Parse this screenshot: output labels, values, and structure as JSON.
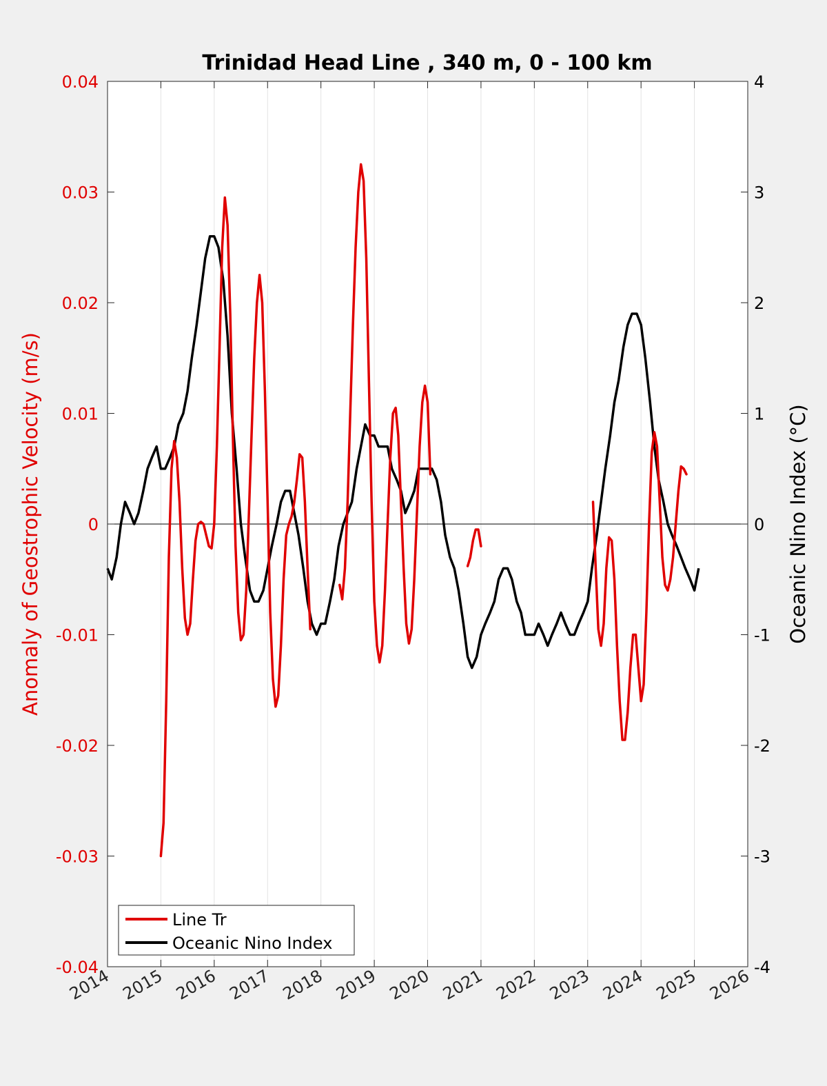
{
  "chart_data": {
    "type": "line",
    "title": "Trinidad Head Line , 340 m, 0 - 100 km",
    "xlabel": "",
    "ylabel_left": "Anomaly of Geostrophic Velocity (m/s)",
    "ylabel_right": "Oceanic Nino Index (°C)",
    "xlim": [
      2014,
      2026
    ],
    "ylim_left": [
      -0.04,
      0.04
    ],
    "ylim_right": [
      -4,
      4
    ],
    "x_ticks": [
      "2014",
      "2015",
      "2016",
      "2017",
      "2018",
      "2019",
      "2020",
      "2021",
      "2022",
      "2023",
      "2024",
      "2025",
      "2026"
    ],
    "y_ticks_left": [
      "-0.04",
      "-0.03",
      "-0.02",
      "-0.01",
      "0",
      "0.01",
      "0.02",
      "0.03",
      "0.04"
    ],
    "y_ticks_right": [
      "-4",
      "-3",
      "-2",
      "-1",
      "0",
      "1",
      "2",
      "3",
      "4"
    ],
    "grid": "vertical",
    "zero_line": true,
    "legend_position": "bottom-left",
    "colors": {
      "line_tr": "#e00000",
      "oni": "#000000"
    },
    "series": [
      {
        "name": "Line Tr",
        "axis": "left",
        "segments": [
          [
            [
              2015.0,
              -0.03
            ],
            [
              2015.05,
              -0.027
            ],
            [
              2015.1,
              -0.016
            ],
            [
              2015.15,
              -0.003
            ],
            [
              2015.2,
              0.005
            ],
            [
              2015.25,
              0.0075
            ],
            [
              2015.3,
              0.006
            ],
            [
              2015.35,
              0.002
            ],
            [
              2015.4,
              -0.004
            ],
            [
              2015.45,
              -0.0085
            ],
            [
              2015.5,
              -0.01
            ],
            [
              2015.55,
              -0.009
            ],
            [
              2015.6,
              -0.005
            ],
            [
              2015.65,
              -0.0015
            ],
            [
              2015.7,
              0.0
            ],
            [
              2015.75,
              0.0002
            ],
            [
              2015.8,
              0.0
            ],
            [
              2015.85,
              -0.001
            ],
            [
              2015.9,
              -0.002
            ],
            [
              2015.95,
              -0.0022
            ],
            [
              2016.0,
              0.0
            ],
            [
              2016.05,
              0.007
            ],
            [
              2016.1,
              0.016
            ],
            [
              2016.15,
              0.025
            ],
            [
              2016.2,
              0.0295
            ],
            [
              2016.25,
              0.027
            ],
            [
              2016.3,
              0.019
            ],
            [
              2016.35,
              0.008
            ],
            [
              2016.4,
              -0.002
            ],
            [
              2016.45,
              -0.008
            ],
            [
              2016.5,
              -0.0105
            ],
            [
              2016.55,
              -0.01
            ],
            [
              2016.6,
              -0.006
            ],
            [
              2016.65,
              0.001
            ],
            [
              2016.7,
              0.008
            ],
            [
              2016.75,
              0.015
            ],
            [
              2016.8,
              0.02
            ],
            [
              2016.85,
              0.0225
            ],
            [
              2016.9,
              0.02
            ],
            [
              2016.95,
              0.012
            ],
            [
              2017.0,
              0.002
            ],
            [
              2017.05,
              -0.008
            ],
            [
              2017.1,
              -0.014
            ],
            [
              2017.15,
              -0.0165
            ],
            [
              2017.2,
              -0.0155
            ],
            [
              2017.25,
              -0.011
            ],
            [
              2017.3,
              -0.005
            ],
            [
              2017.35,
              -0.001
            ],
            [
              2017.4,
              0.0
            ],
            [
              2017.45,
              0.0007
            ],
            [
              2017.5,
              0.002
            ],
            [
              2017.55,
              0.004
            ],
            [
              2017.6,
              0.0063
            ],
            [
              2017.65,
              0.006
            ],
            [
              2017.7,
              0.002
            ],
            [
              2017.75,
              -0.004
            ],
            [
              2017.8,
              -0.0095
            ]
          ],
          [
            [
              2018.35,
              -0.0055
            ],
            [
              2018.4,
              -0.0068
            ],
            [
              2018.45,
              -0.004
            ],
            [
              2018.5,
              0.002
            ],
            [
              2018.55,
              0.01
            ],
            [
              2018.6,
              0.018
            ],
            [
              2018.65,
              0.025
            ],
            [
              2018.7,
              0.03
            ],
            [
              2018.75,
              0.0325
            ],
            [
              2018.8,
              0.031
            ],
            [
              2018.85,
              0.024
            ],
            [
              2018.9,
              0.013
            ],
            [
              2018.95,
              0.002
            ],
            [
              2019.0,
              -0.007
            ],
            [
              2019.05,
              -0.011
            ],
            [
              2019.1,
              -0.0125
            ],
            [
              2019.15,
              -0.011
            ],
            [
              2019.2,
              -0.006
            ],
            [
              2019.25,
              0.0
            ],
            [
              2019.3,
              0.006
            ],
            [
              2019.35,
              0.01
            ],
            [
              2019.4,
              0.0105
            ],
            [
              2019.45,
              0.008
            ],
            [
              2019.5,
              0.002
            ],
            [
              2019.55,
              -0.004
            ],
            [
              2019.6,
              -0.009
            ],
            [
              2019.65,
              -0.0108
            ],
            [
              2019.7,
              -0.0095
            ],
            [
              2019.75,
              -0.005
            ],
            [
              2019.8,
              0.001
            ],
            [
              2019.85,
              0.007
            ],
            [
              2019.9,
              0.011
            ],
            [
              2019.95,
              0.0125
            ],
            [
              2020.0,
              0.011
            ],
            [
              2020.05,
              0.0045
            ]
          ],
          [
            [
              2020.75,
              -0.0038
            ],
            [
              2020.8,
              -0.003
            ],
            [
              2020.85,
              -0.0015
            ],
            [
              2020.9,
              -0.0005
            ],
            [
              2020.95,
              -0.0005
            ],
            [
              2021.0,
              -0.002
            ]
          ],
          [
            [
              2023.1,
              0.002
            ],
            [
              2023.15,
              -0.004
            ],
            [
              2023.2,
              -0.0095
            ],
            [
              2023.25,
              -0.011
            ],
            [
              2023.3,
              -0.009
            ],
            [
              2023.35,
              -0.004
            ],
            [
              2023.4,
              -0.0012
            ],
            [
              2023.45,
              -0.0015
            ],
            [
              2023.5,
              -0.005
            ],
            [
              2023.55,
              -0.011
            ],
            [
              2023.6,
              -0.016
            ],
            [
              2023.65,
              -0.0195
            ],
            [
              2023.7,
              -0.0195
            ],
            [
              2023.75,
              -0.017
            ],
            [
              2023.8,
              -0.013
            ],
            [
              2023.85,
              -0.01
            ],
            [
              2023.9,
              -0.01
            ],
            [
              2023.95,
              -0.013
            ],
            [
              2024.0,
              -0.016
            ],
            [
              2024.05,
              -0.0145
            ],
            [
              2024.1,
              -0.008
            ],
            [
              2024.15,
              0.0
            ],
            [
              2024.2,
              0.0065
            ],
            [
              2024.25,
              0.0083
            ],
            [
              2024.3,
              0.007
            ],
            [
              2024.35,
              0.002
            ],
            [
              2024.4,
              -0.003
            ],
            [
              2024.45,
              -0.0055
            ],
            [
              2024.5,
              -0.006
            ],
            [
              2024.55,
              -0.005
            ],
            [
              2024.6,
              -0.003
            ],
            [
              2024.65,
              0.0
            ],
            [
              2024.7,
              0.003
            ],
            [
              2024.75,
              0.0052
            ],
            [
              2024.8,
              0.005
            ],
            [
              2024.85,
              0.0045
            ]
          ]
        ]
      },
      {
        "name": "Oceanic Nino Index",
        "axis": "right",
        "points": [
          [
            2014.0,
            -0.4
          ],
          [
            2014.08,
            -0.5
          ],
          [
            2014.17,
            -0.3
          ],
          [
            2014.25,
            0.0
          ],
          [
            2014.33,
            0.2
          ],
          [
            2014.42,
            0.1
          ],
          [
            2014.5,
            0.0
          ],
          [
            2014.58,
            0.1
          ],
          [
            2014.67,
            0.3
          ],
          [
            2014.75,
            0.5
          ],
          [
            2014.83,
            0.6
          ],
          [
            2014.92,
            0.7
          ],
          [
            2015.0,
            0.5
          ],
          [
            2015.08,
            0.5
          ],
          [
            2015.17,
            0.6
          ],
          [
            2015.25,
            0.7
          ],
          [
            2015.33,
            0.9
          ],
          [
            2015.42,
            1.0
          ],
          [
            2015.5,
            1.2
          ],
          [
            2015.58,
            1.5
          ],
          [
            2015.67,
            1.8
          ],
          [
            2015.75,
            2.1
          ],
          [
            2015.83,
            2.4
          ],
          [
            2015.92,
            2.6
          ],
          [
            2016.0,
            2.6
          ],
          [
            2016.08,
            2.5
          ],
          [
            2016.17,
            2.2
          ],
          [
            2016.25,
            1.7
          ],
          [
            2016.33,
            1.0
          ],
          [
            2016.42,
            0.5
          ],
          [
            2016.5,
            0.0
          ],
          [
            2016.58,
            -0.3
          ],
          [
            2016.67,
            -0.6
          ],
          [
            2016.75,
            -0.7
          ],
          [
            2016.83,
            -0.7
          ],
          [
            2016.92,
            -0.6
          ],
          [
            2017.0,
            -0.4
          ],
          [
            2017.08,
            -0.2
          ],
          [
            2017.17,
            0.0
          ],
          [
            2017.25,
            0.2
          ],
          [
            2017.33,
            0.3
          ],
          [
            2017.42,
            0.3
          ],
          [
            2017.5,
            0.1
          ],
          [
            2017.58,
            -0.1
          ],
          [
            2017.67,
            -0.4
          ],
          [
            2017.75,
            -0.7
          ],
          [
            2017.83,
            -0.9
          ],
          [
            2017.92,
            -1.0
          ],
          [
            2018.0,
            -0.9
          ],
          [
            2018.08,
            -0.9
          ],
          [
            2018.17,
            -0.7
          ],
          [
            2018.25,
            -0.5
          ],
          [
            2018.33,
            -0.2
          ],
          [
            2018.42,
            0.0
          ],
          [
            2018.5,
            0.1
          ],
          [
            2018.58,
            0.2
          ],
          [
            2018.67,
            0.5
          ],
          [
            2018.75,
            0.7
          ],
          [
            2018.83,
            0.9
          ],
          [
            2018.92,
            0.8
          ],
          [
            2019.0,
            0.8
          ],
          [
            2019.08,
            0.7
          ],
          [
            2019.17,
            0.7
          ],
          [
            2019.25,
            0.7
          ],
          [
            2019.33,
            0.5
          ],
          [
            2019.42,
            0.4
          ],
          [
            2019.5,
            0.3
          ],
          [
            2019.58,
            0.1
          ],
          [
            2019.67,
            0.2
          ],
          [
            2019.75,
            0.3
          ],
          [
            2019.83,
            0.5
          ],
          [
            2019.92,
            0.5
          ],
          [
            2020.0,
            0.5
          ],
          [
            2020.08,
            0.5
          ],
          [
            2020.17,
            0.4
          ],
          [
            2020.25,
            0.2
          ],
          [
            2020.33,
            -0.1
          ],
          [
            2020.42,
            -0.3
          ],
          [
            2020.5,
            -0.4
          ],
          [
            2020.58,
            -0.6
          ],
          [
            2020.67,
            -0.9
          ],
          [
            2020.75,
            -1.2
          ],
          [
            2020.83,
            -1.3
          ],
          [
            2020.92,
            -1.2
          ],
          [
            2021.0,
            -1.0
          ],
          [
            2021.08,
            -0.9
          ],
          [
            2021.17,
            -0.8
          ],
          [
            2021.25,
            -0.7
          ],
          [
            2021.33,
            -0.5
          ],
          [
            2021.42,
            -0.4
          ],
          [
            2021.5,
            -0.4
          ],
          [
            2021.58,
            -0.5
          ],
          [
            2021.67,
            -0.7
          ],
          [
            2021.75,
            -0.8
          ],
          [
            2021.83,
            -1.0
          ],
          [
            2021.92,
            -1.0
          ],
          [
            2022.0,
            -1.0
          ],
          [
            2022.08,
            -0.9
          ],
          [
            2022.17,
            -1.0
          ],
          [
            2022.25,
            -1.1
          ],
          [
            2022.33,
            -1.0
          ],
          [
            2022.42,
            -0.9
          ],
          [
            2022.5,
            -0.8
          ],
          [
            2022.58,
            -0.9
          ],
          [
            2022.67,
            -1.0
          ],
          [
            2022.75,
            -1.0
          ],
          [
            2022.83,
            -0.9
          ],
          [
            2022.92,
            -0.8
          ],
          [
            2023.0,
            -0.7
          ],
          [
            2023.08,
            -0.4
          ],
          [
            2023.17,
            -0.1
          ],
          [
            2023.25,
            0.2
          ],
          [
            2023.33,
            0.5
          ],
          [
            2023.42,
            0.8
          ],
          [
            2023.5,
            1.1
          ],
          [
            2023.58,
            1.3
          ],
          [
            2023.67,
            1.6
          ],
          [
            2023.75,
            1.8
          ],
          [
            2023.83,
            1.9
          ],
          [
            2023.92,
            1.9
          ],
          [
            2024.0,
            1.8
          ],
          [
            2024.08,
            1.5
          ],
          [
            2024.17,
            1.1
          ],
          [
            2024.25,
            0.7
          ],
          [
            2024.33,
            0.4
          ],
          [
            2024.42,
            0.2
          ],
          [
            2024.5,
            0.0
          ],
          [
            2024.58,
            -0.1
          ],
          [
            2024.67,
            -0.2
          ],
          [
            2024.75,
            -0.3
          ],
          [
            2024.83,
            -0.4
          ],
          [
            2024.92,
            -0.5
          ],
          [
            2025.0,
            -0.6
          ],
          [
            2025.08,
            -0.4
          ]
        ]
      }
    ]
  }
}
